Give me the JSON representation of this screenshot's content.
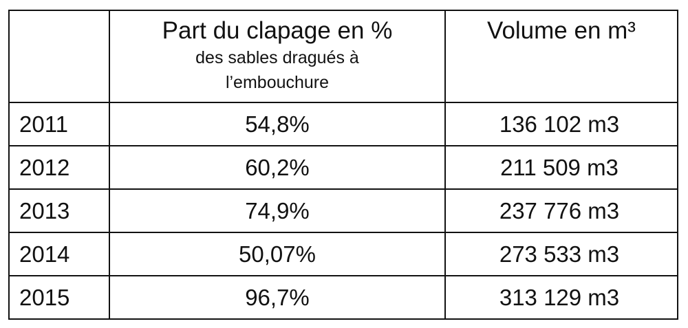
{
  "table": {
    "header": {
      "share_title": "Part du clapage en %",
      "share_subtitle_line1": "des sables dragués à",
      "share_subtitle_line2": "l’embouchure",
      "volume_title": "Volume en m³"
    },
    "rows": [
      {
        "year": "2011",
        "share": "54,8%",
        "volume": "136 102 m3"
      },
      {
        "year": "2012",
        "share": "60,2%",
        "volume": "211 509 m3"
      },
      {
        "year": "2013",
        "share": "74,9%",
        "volume": "237 776 m3"
      },
      {
        "year": "2014",
        "share": "50,07%",
        "volume": "273 533 m3"
      },
      {
        "year": "2015",
        "share": "96,7%",
        "volume": "313 129 m3"
      }
    ]
  }
}
